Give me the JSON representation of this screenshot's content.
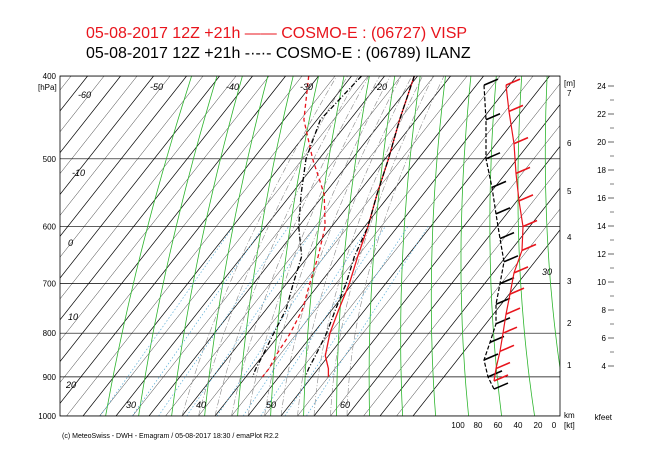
{
  "title": {
    "line1": "05-08-2017  12Z +21h —— COSMO-E : (06727)  VISP",
    "line2": "05-08-2017  12Z +21h -·-·- COSMO-E : (06789)  ILANZ"
  },
  "footer": "(c) MeteoSwiss - DWH - Emagram / 05-08-2017  18:30 / emaPlot R2.2",
  "colors": {
    "visp": "#e8141c",
    "ilanz": "#000000",
    "isotherm": "#000000",
    "dry_adiabat": "#2db52d",
    "mixing_ratio": "#5aaed8",
    "moist_adiabat": "#888888"
  },
  "chart_data": {
    "type": "line",
    "pressure_ticks": [
      "400",
      "500",
      "600",
      "700",
      "800",
      "900",
      "1000"
    ],
    "pressure_unit": "[hPa]",
    "isotherm_labels": [
      "-60",
      "-50",
      "-40",
      "-30",
      "-20",
      "-10",
      "0",
      "10",
      "20",
      "30",
      "40",
      "50",
      "60",
      "30"
    ],
    "height_m_ticks": [
      "7",
      "6",
      "5",
      "4",
      "3",
      "2",
      "1"
    ],
    "height_m_unit": "[m]",
    "height_kft_ticks": [
      "24",
      "22",
      "20",
      "18",
      "16",
      "14",
      "12",
      "10",
      "8",
      "6",
      "4"
    ],
    "height_kft_unit": "kfeet",
    "wind_ticks": [
      "100",
      "80",
      "60",
      "40",
      "20",
      "0"
    ],
    "wind_unit": "[kt]",
    "km_label": "km",
    "ylim": [
      1000,
      400
    ],
    "series": [
      {
        "name": "VISP",
        "temperature": [
          {
            "p": 400,
            "t": -21
          },
          {
            "p": 450,
            "t": -15
          },
          {
            "p": 500,
            "t": -9
          },
          {
            "p": 550,
            "t": -4
          },
          {
            "p": 600,
            "t": 1
          },
          {
            "p": 650,
            "t": 5
          },
          {
            "p": 700,
            "t": 9
          },
          {
            "p": 750,
            "t": 12
          },
          {
            "p": 800,
            "t": 15
          },
          {
            "p": 850,
            "t": 19
          },
          {
            "p": 880,
            "t": 23
          },
          {
            "p": 900,
            "t": 25
          }
        ],
        "dewpoint": [
          {
            "p": 400,
            "t": -53
          },
          {
            "p": 450,
            "t": -44
          },
          {
            "p": 500,
            "t": -32
          },
          {
            "p": 550,
            "t": -20
          },
          {
            "p": 600,
            "t": -12
          },
          {
            "p": 650,
            "t": -7
          },
          {
            "p": 700,
            "t": -3
          },
          {
            "p": 750,
            "t": 1
          },
          {
            "p": 800,
            "t": 3
          },
          {
            "p": 850,
            "t": 4
          },
          {
            "p": 880,
            "t": 5
          },
          {
            "p": 900,
            "t": 5
          }
        ]
      },
      {
        "name": "ILANZ",
        "temperature": [
          {
            "p": 400,
            "t": -21
          },
          {
            "p": 450,
            "t": -15
          },
          {
            "p": 500,
            "t": -9
          },
          {
            "p": 550,
            "t": -4
          },
          {
            "p": 600,
            "t": 1
          },
          {
            "p": 650,
            "t": 4
          },
          {
            "p": 700,
            "t": 8
          },
          {
            "p": 750,
            "t": 11
          },
          {
            "p": 800,
            "t": 14
          },
          {
            "p": 850,
            "t": 16
          },
          {
            "p": 880,
            "t": 17
          },
          {
            "p": 900,
            "t": 18
          }
        ],
        "dewpoint": [
          {
            "p": 400,
            "t": -37
          },
          {
            "p": 450,
            "t": -39
          },
          {
            "p": 500,
            "t": -34
          },
          {
            "p": 550,
            "t": -27
          },
          {
            "p": 600,
            "t": -20
          },
          {
            "p": 650,
            "t": -12
          },
          {
            "p": 700,
            "t": -8
          },
          {
            "p": 750,
            "t": -4
          },
          {
            "p": 800,
            "t": -2
          },
          {
            "p": 850,
            "t": 0
          },
          {
            "p": 880,
            "t": 1
          },
          {
            "p": 900,
            "t": 2
          }
        ]
      }
    ],
    "wind_profile": {
      "visp": [
        {
          "p": 410,
          "kt": 50
        },
        {
          "p": 440,
          "kt": 47
        },
        {
          "p": 480,
          "kt": 42
        },
        {
          "p": 520,
          "kt": 40
        },
        {
          "p": 560,
          "kt": 37
        },
        {
          "p": 600,
          "kt": 33
        },
        {
          "p": 640,
          "kt": 34
        },
        {
          "p": 680,
          "kt": 42
        },
        {
          "p": 720,
          "kt": 46
        },
        {
          "p": 760,
          "kt": 50
        },
        {
          "p": 800,
          "kt": 53
        },
        {
          "p": 840,
          "kt": 56
        },
        {
          "p": 880,
          "kt": 60
        },
        {
          "p": 910,
          "kt": 62
        }
      ],
      "ilanz": [
        {
          "p": 410,
          "kt": 72
        },
        {
          "p": 450,
          "kt": 70
        },
        {
          "p": 500,
          "kt": 70
        },
        {
          "p": 540,
          "kt": 64
        },
        {
          "p": 580,
          "kt": 60
        },
        {
          "p": 620,
          "kt": 56
        },
        {
          "p": 660,
          "kt": 52
        },
        {
          "p": 700,
          "kt": 56
        },
        {
          "p": 740,
          "kt": 60
        },
        {
          "p": 780,
          "kt": 60
        },
        {
          "p": 820,
          "kt": 66
        },
        {
          "p": 860,
          "kt": 72
        },
        {
          "p": 900,
          "kt": 68
        },
        {
          "p": 930,
          "kt": 62
        }
      ]
    }
  }
}
